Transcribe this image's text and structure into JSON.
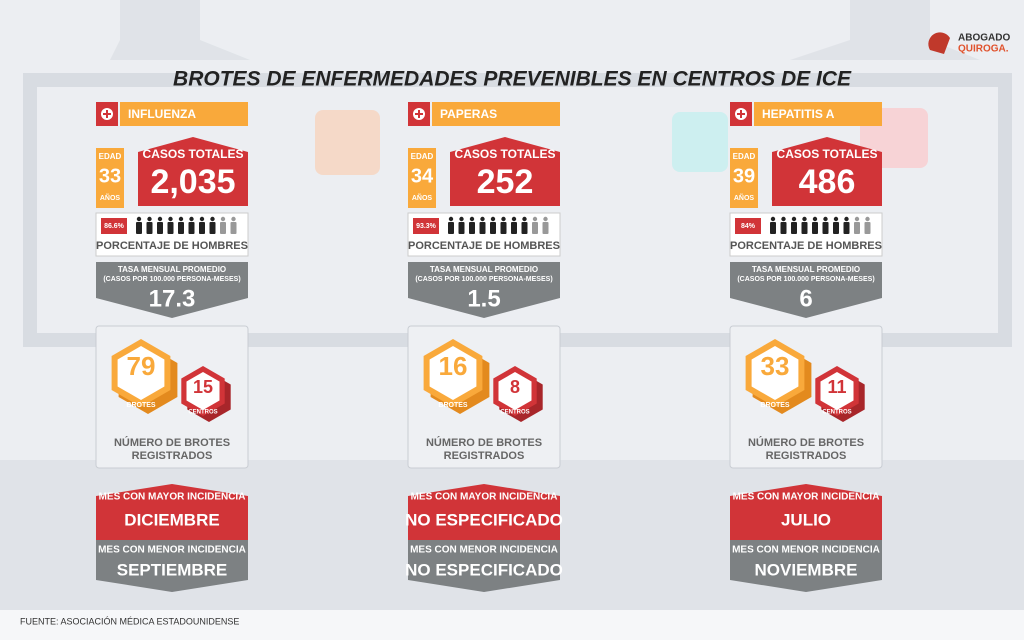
{
  "header": {
    "title": "BROTES DE ENFERMEDADES PREVENIBLES EN CENTROS DE ICE",
    "logo": {
      "line1": "ABOGADO",
      "line2": "QUIROGA."
    }
  },
  "labels": {
    "age": "EDAD",
    "years": "AÑOS",
    "total_cases": "CASOS TOTALES",
    "male_pct": "PORCENTAJE DE HOMBRES",
    "rate_title": "TASA MENSUAL PROMEDIO",
    "rate_unit": "(CASOS POR 100.000 PERSONA-MESES)",
    "outbreaks": "BROTES",
    "centers": "CENTROS",
    "outbreaks_caption": [
      "NÚMERO DE BROTES",
      "REGISTRADOS"
    ],
    "max_month": "MES CON MAYOR INCIDENCIA",
    "min_month": "MES CON MENOR INCIDENCIA"
  },
  "panels": [
    {
      "disease": "INFLUENZA",
      "age": 33,
      "total_cases": "2,035",
      "male_percent": "86.6%",
      "rate": 17.3,
      "outbreaks": 79,
      "centers": 15,
      "max_month": "DICIEMBRE",
      "min_month": "SEPTIEMBRE"
    },
    {
      "disease": "PAPERAS",
      "age": 34,
      "total_cases": "252",
      "male_percent": "93.3%",
      "rate": 1.5,
      "outbreaks": 16,
      "centers": 8,
      "max_month": "NO ESPECIFICADO",
      "min_month": "NO ESPECIFICADO"
    },
    {
      "disease": "HEPATITIS A",
      "age": 39,
      "total_cases": "486",
      "male_percent": "84%",
      "rate": 6,
      "outbreaks": 33,
      "centers": 11,
      "max_month": "JULIO",
      "min_month": "NOVIEMBRE"
    }
  ],
  "footer": {
    "source": "FUENTE: ASOCIACIÓN MÉDICA ESTADOUNIDENSE"
  }
}
